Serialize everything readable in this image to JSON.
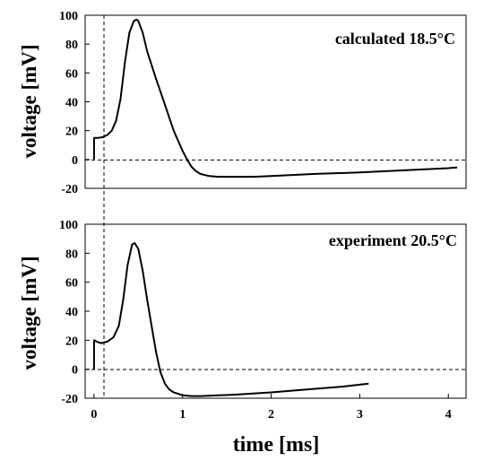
{
  "chart_data": [
    {
      "type": "line",
      "annotation": "calculated 18.5°C",
      "ylabel": "voltage [mV]",
      "xlabel": "",
      "xlim": [
        -0.1,
        4.2
      ],
      "ylim": [
        -20,
        100
      ],
      "xticks": [
        "0",
        "1",
        "2",
        "3",
        "4"
      ],
      "yticks": [
        "100",
        "80",
        "60",
        "40",
        "20",
        "0",
        "-20"
      ],
      "yticks_values": [
        100,
        80,
        60,
        40,
        20,
        0,
        -20
      ],
      "grid": false,
      "zero_line": "dashed",
      "series": [
        {
          "x": [
            0,
            0.001,
            0.05,
            0.1,
            0.15,
            0.2,
            0.25,
            0.3,
            0.35,
            0.4,
            0.45,
            0.48,
            0.5,
            0.55,
            0.6,
            0.7,
            0.8,
            0.9,
            1.0,
            1.05,
            1.1,
            1.15,
            1.2,
            1.3,
            1.4,
            1.5,
            1.6,
            1.8,
            2.0,
            2.5,
            3.0,
            3.5,
            4.0,
            4.1
          ],
          "y": [
            0,
            15,
            15,
            15.5,
            17,
            20,
            27,
            42,
            68,
            88,
            96,
            97,
            96,
            88,
            75,
            56,
            38,
            20,
            6,
            0,
            -5,
            -8,
            -10,
            -11.5,
            -12,
            -12,
            -12,
            -12,
            -11.5,
            -10,
            -9,
            -7.5,
            -6,
            -5.5
          ]
        }
      ]
    },
    {
      "type": "line",
      "annotation": "experiment 20.5°C",
      "ylabel": "voltage [mV]",
      "xlabel": "time [ms]",
      "xlim": [
        -0.1,
        4.2
      ],
      "ylim": [
        -20,
        100
      ],
      "xticks": [
        "0",
        "1",
        "2",
        "3",
        "4"
      ],
      "xticks_values": [
        0,
        1,
        2,
        3,
        4
      ],
      "yticks": [
        "100",
        "80",
        "60",
        "40",
        "20",
        "0",
        "-20"
      ],
      "yticks_values": [
        100,
        80,
        60,
        40,
        20,
        0,
        -20
      ],
      "grid": false,
      "zero_line": "dashed",
      "series": [
        {
          "x": [
            0,
            0.001,
            0.03,
            0.08,
            0.15,
            0.22,
            0.28,
            0.33,
            0.38,
            0.43,
            0.46,
            0.5,
            0.55,
            0.6,
            0.65,
            0.7,
            0.75,
            0.8,
            0.85,
            0.9,
            0.95,
            1.0,
            1.1,
            1.2,
            1.4,
            1.6,
            2.0,
            2.4,
            2.8,
            3.1
          ],
          "y": [
            0,
            20,
            19,
            18,
            19,
            22,
            30,
            48,
            72,
            86,
            87,
            83,
            68,
            48,
            30,
            12,
            -2,
            -10,
            -14,
            -16,
            -17,
            -18,
            -18.5,
            -18.5,
            -18,
            -17.5,
            -16,
            -14,
            -12,
            -10
          ]
        }
      ]
    }
  ]
}
